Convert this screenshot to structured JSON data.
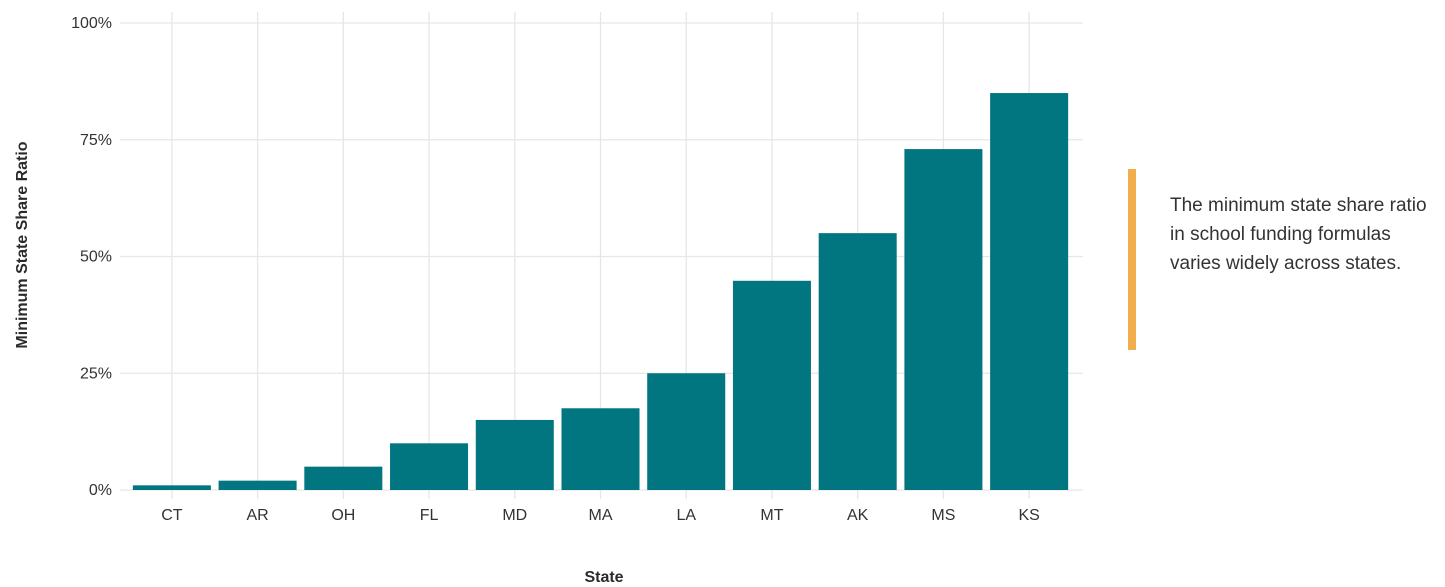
{
  "chart_data": {
    "type": "bar",
    "categories": [
      "CT",
      "AR",
      "OH",
      "FL",
      "MD",
      "MA",
      "LA",
      "MT",
      "AK",
      "MS",
      "KS"
    ],
    "values": [
      1,
      2,
      5,
      10,
      15,
      17.5,
      25,
      44.8,
      55,
      73,
      85
    ],
    "xlabel": "State",
    "ylabel": "Minimum State Share Ratio",
    "ylim": [
      0,
      100
    ],
    "yticks": [
      "0%",
      "25%",
      "50%",
      "75%",
      "100%"
    ],
    "grid": true,
    "bar_color": "#017580",
    "grid_color": "#e6e6e6"
  },
  "annotation": {
    "text": "The minimum state share ratio in school funding formulas varies widely across states.",
    "accent_color": "#f2ad4d"
  }
}
